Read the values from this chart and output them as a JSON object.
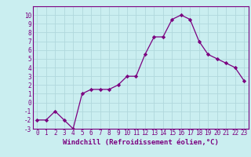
{
  "x": [
    0,
    1,
    2,
    3,
    4,
    5,
    6,
    7,
    8,
    9,
    10,
    11,
    12,
    13,
    14,
    15,
    16,
    17,
    18,
    19,
    20,
    21,
    22,
    23
  ],
  "y": [
    -2,
    -2,
    -1,
    -2,
    -3,
    1,
    1.5,
    1.5,
    1.5,
    2,
    3,
    3,
    5.5,
    7.5,
    7.5,
    9.5,
    10,
    9.5,
    7,
    5.5,
    5,
    4.5,
    4,
    2.5
  ],
  "line_color": "#7b0080",
  "marker": "D",
  "marker_size": 2.2,
  "bg_color": "#caeef0",
  "grid_color": "#b0d8dc",
  "xlabel": "Windchill (Refroidissement éolien,°C)",
  "ylim": [
    -3,
    11
  ],
  "xlim": [
    -0.5,
    23.5
  ],
  "yticks": [
    -3,
    -2,
    -1,
    0,
    1,
    2,
    3,
    4,
    5,
    6,
    7,
    8,
    9,
    10
  ],
  "xticks": [
    0,
    1,
    2,
    3,
    4,
    5,
    6,
    7,
    8,
    9,
    10,
    11,
    12,
    13,
    14,
    15,
    16,
    17,
    18,
    19,
    20,
    21,
    22,
    23
  ],
  "tick_color": "#7b0080",
  "label_color": "#7b0080",
  "font_size": 5.5,
  "xlabel_font_size": 6.5,
  "spine_color": "#7b0080",
  "linewidth": 0.9
}
